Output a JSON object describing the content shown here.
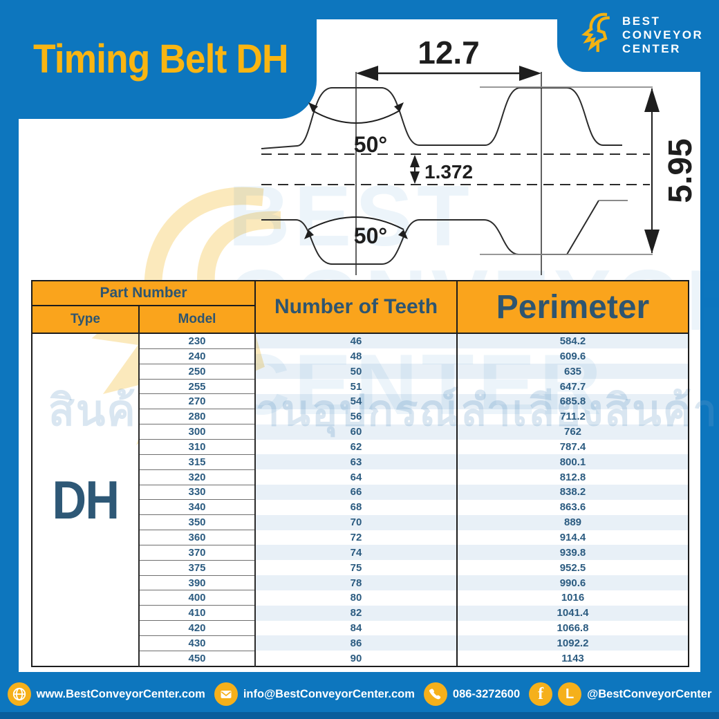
{
  "title": "Timing Belt DH",
  "logo": {
    "name_lines": [
      "BEST",
      "CONVEYOR",
      "CENTER"
    ]
  },
  "diagram": {
    "pitch": "12.7",
    "angle_top": "50°",
    "angle_bottom": "50°",
    "thickness": "1.372",
    "height": "5.95"
  },
  "watermark": {
    "thai": "สินค้าโรงงานอุปกรณ์ลำเลียงสินค้า",
    "words": [
      "BEST",
      "CONVEYOR",
      "CENTER"
    ]
  },
  "table": {
    "header": {
      "part_number": "Part Number",
      "type": "Type",
      "model": "Model",
      "teeth": "Number of Teeth",
      "perimeter": "Perimeter"
    },
    "type_value": "DH",
    "rows": [
      {
        "model": "230",
        "teeth": "46",
        "perimeter": "584.2"
      },
      {
        "model": "240",
        "teeth": "48",
        "perimeter": "609.6"
      },
      {
        "model": "250",
        "teeth": "50",
        "perimeter": "635"
      },
      {
        "model": "255",
        "teeth": "51",
        "perimeter": "647.7"
      },
      {
        "model": "270",
        "teeth": "54",
        "perimeter": "685.8"
      },
      {
        "model": "280",
        "teeth": "56",
        "perimeter": "711.2"
      },
      {
        "model": "300",
        "teeth": "60",
        "perimeter": "762"
      },
      {
        "model": "310",
        "teeth": "62",
        "perimeter": "787.4"
      },
      {
        "model": "315",
        "teeth": "63",
        "perimeter": "800.1"
      },
      {
        "model": "320",
        "teeth": "64",
        "perimeter": "812.8"
      },
      {
        "model": "330",
        "teeth": "66",
        "perimeter": "838.2"
      },
      {
        "model": "340",
        "teeth": "68",
        "perimeter": "863.6"
      },
      {
        "model": "350",
        "teeth": "70",
        "perimeter": "889"
      },
      {
        "model": "360",
        "teeth": "72",
        "perimeter": "914.4"
      },
      {
        "model": "370",
        "teeth": "74",
        "perimeter": "939.8"
      },
      {
        "model": "375",
        "teeth": "75",
        "perimeter": "952.5"
      },
      {
        "model": "390",
        "teeth": "78",
        "perimeter": "990.6"
      },
      {
        "model": "400",
        "teeth": "80",
        "perimeter": "1016"
      },
      {
        "model": "410",
        "teeth": "82",
        "perimeter": "1041.4"
      },
      {
        "model": "420",
        "teeth": "84",
        "perimeter": "1066.8"
      },
      {
        "model": "430",
        "teeth": "86",
        "perimeter": "1092.2"
      },
      {
        "model": "450",
        "teeth": "90",
        "perimeter": "1143"
      }
    ]
  },
  "footer": {
    "website": "www.BestConveyorCenter.com",
    "email": "info@BestConveyorCenter.com",
    "phone": "086-3272600",
    "social": "@BestConveyorCenter"
  },
  "colors": {
    "blue": "#0D76BE",
    "title_yellow": "#F9B512",
    "header_orange": "#FAA41C",
    "navy_text": "#2E5570",
    "row_blue": "#E6EEF6",
    "icon_yellow": "#F5B01B"
  }
}
